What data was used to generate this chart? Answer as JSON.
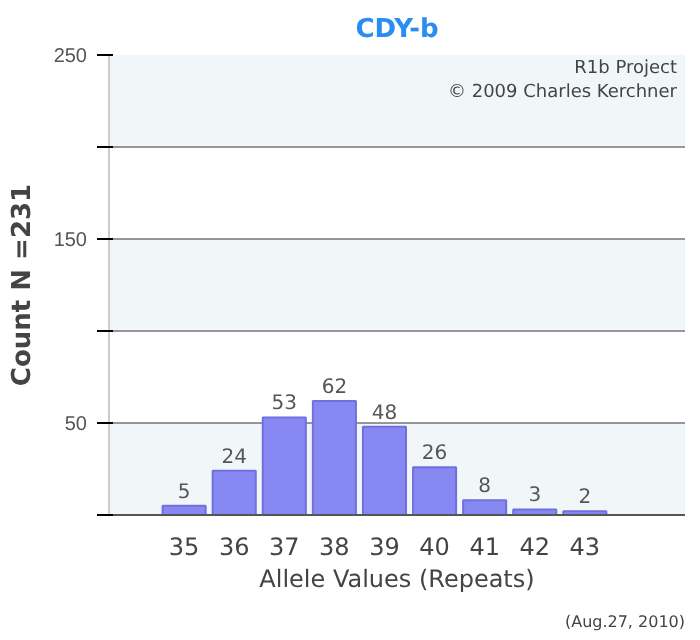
{
  "chart_data": {
    "type": "bar",
    "title": "CDY-b",
    "xlabel": "Allele Values (Repeats)",
    "ylabel": "Count N =231",
    "categories": [
      "35",
      "36",
      "37",
      "38",
      "39",
      "40",
      "41",
      "42",
      "43"
    ],
    "values": [
      5,
      24,
      53,
      62,
      48,
      26,
      8,
      3,
      2
    ],
    "color": "#8888f2",
    "ylim": [
      0,
      250
    ],
    "yticks": [
      {
        "value": 0,
        "label": null
      },
      50,
      {
        "value": 100,
        "label": null
      },
      150,
      {
        "value": 200,
        "label": null
      },
      250
    ],
    "grid": "y",
    "data_labels": true,
    "annotations": [
      "R1b Project",
      "© 2009 Charles Kerchner",
      "(Aug.27, 2010)"
    ]
  }
}
